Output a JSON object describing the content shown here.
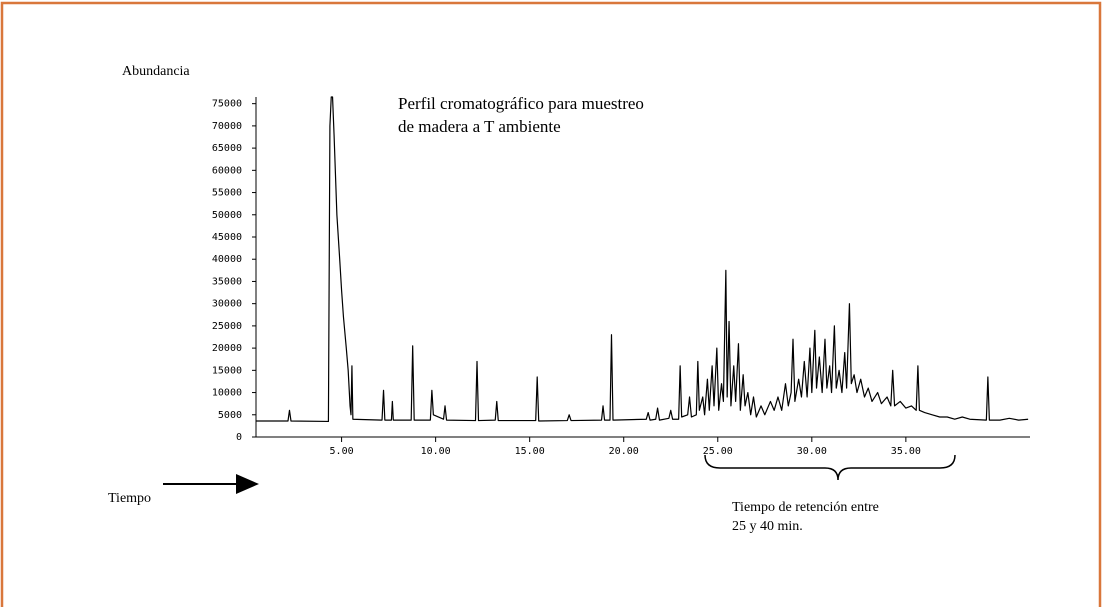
{
  "chart_data": {
    "type": "line",
    "title": [
      "Perfil cromatográfico para muestreo",
      "de madera a T ambiente"
    ],
    "ylabel": "Abundancia",
    "xlabel": "Tiempo",
    "annotation": [
      "Tiempo de retención entre",
      "25 y 40 min."
    ],
    "color": "#000000",
    "xlim": [
      0.45,
      41.6
    ],
    "ylim": [
      0,
      76500
    ],
    "xticks": [
      {
        "value": 5,
        "label": "5.00"
      },
      {
        "value": 10,
        "label": "10.00"
      },
      {
        "value": 15,
        "label": "15.00"
      },
      {
        "value": 20,
        "label": "20.00"
      },
      {
        "value": 25,
        "label": "25.00"
      },
      {
        "value": 30,
        "label": "30.00"
      },
      {
        "value": 35,
        "label": "35.00"
      }
    ],
    "yticks": [
      0,
      5000,
      10000,
      15000,
      20000,
      25000,
      30000,
      35000,
      40000,
      45000,
      50000,
      55000,
      60000,
      65000,
      70000,
      75000
    ],
    "x": [
      0.45,
      2.15,
      2.23,
      2.31,
      4.3,
      4.38,
      4.45,
      4.52,
      4.6,
      4.75,
      4.9,
      5.0,
      5.1,
      5.25,
      5.35,
      5.45,
      5.5,
      5.55,
      5.6,
      7.15,
      7.23,
      7.3,
      7.65,
      7.7,
      7.75,
      8.7,
      8.78,
      8.86,
      9.72,
      9.8,
      9.88,
      10.42,
      10.5,
      10.58,
      12.12,
      12.2,
      12.28,
      13.17,
      13.25,
      13.33,
      15.32,
      15.4,
      15.48,
      17.0,
      17.1,
      17.2,
      18.82,
      18.9,
      18.98,
      19.27,
      19.35,
      19.43,
      21.2,
      21.3,
      21.4,
      21.7,
      21.8,
      21.9,
      22.4,
      22.5,
      22.6,
      22.92,
      23.0,
      23.08,
      23.4,
      23.5,
      23.6,
      23.86,
      23.94,
      24.02,
      24.2,
      24.3,
      24.45,
      24.55,
      24.7,
      24.8,
      24.95,
      25.05,
      25.2,
      25.3,
      25.43,
      25.5,
      25.6,
      25.7,
      25.85,
      25.95,
      26.1,
      26.2,
      26.35,
      26.45,
      26.6,
      26.75,
      26.9,
      27.05,
      27.3,
      27.5,
      27.8,
      28.0,
      28.2,
      28.4,
      28.6,
      28.75,
      28.9,
      29.0,
      29.1,
      29.3,
      29.45,
      29.6,
      29.75,
      29.9,
      30.0,
      30.16,
      30.25,
      30.4,
      30.55,
      30.7,
      30.8,
      30.95,
      31.05,
      31.2,
      31.3,
      31.45,
      31.6,
      31.75,
      31.85,
      32.0,
      32.1,
      32.25,
      32.4,
      32.6,
      32.8,
      33.0,
      33.2,
      33.5,
      33.7,
      34.0,
      34.2,
      34.3,
      34.4,
      34.7,
      35.0,
      35.3,
      35.55,
      35.64,
      35.72,
      36.0,
      36.4,
      36.8,
      37.2,
      37.6,
      38.0,
      38.4,
      39.28,
      39.36,
      39.44,
      40.0,
      40.5,
      41.0,
      41.5
    ],
    "values": [
      3600,
      3600,
      6000,
      3600,
      3500,
      70000,
      76500,
      76500,
      68000,
      50000,
      40000,
      33000,
      27000,
      20000,
      15000,
      7000,
      5000,
      16000,
      4000,
      3800,
      10500,
      3800,
      3800,
      8000,
      3800,
      3800,
      20500,
      3800,
      3800,
      10500,
      5000,
      4000,
      7000,
      3800,
      3700,
      17000,
      3700,
      3800,
      8000,
      3700,
      3700,
      13500,
      3600,
      3700,
      5000,
      3700,
      3800,
      7000,
      3800,
      3800,
      23000,
      3800,
      4000,
      5500,
      3800,
      4000,
      6500,
      3800,
      4200,
      6000,
      4000,
      4000,
      16000,
      4500,
      5000,
      9000,
      4500,
      5000,
      17000,
      6000,
      9000,
      5000,
      13000,
      6000,
      16000,
      7000,
      20000,
      6000,
      12000,
      8000,
      37500,
      9000,
      26000,
      7000,
      16000,
      8000,
      21000,
      6000,
      14000,
      7000,
      10000,
      5000,
      9000,
      4500,
      7000,
      5000,
      8000,
      6000,
      9000,
      6000,
      12000,
      7000,
      10000,
      22000,
      8000,
      13000,
      9000,
      17000,
      9000,
      20000,
      10000,
      24000,
      11000,
      18000,
      10000,
      22000,
      11000,
      16000,
      10000,
      25000,
      11000,
      15000,
      10000,
      19000,
      11000,
      30000,
      12000,
      14000,
      10000,
      13000,
      9000,
      11000,
      8000,
      10000,
      7500,
      9000,
      7000,
      15000,
      7000,
      8000,
      6500,
      7000,
      6000,
      16000,
      6000,
      5500,
      5000,
      4500,
      4500,
      4000,
      4500,
      4000,
      3800,
      13500,
      3800,
      3800,
      4200,
      3800,
      4000
    ]
  }
}
